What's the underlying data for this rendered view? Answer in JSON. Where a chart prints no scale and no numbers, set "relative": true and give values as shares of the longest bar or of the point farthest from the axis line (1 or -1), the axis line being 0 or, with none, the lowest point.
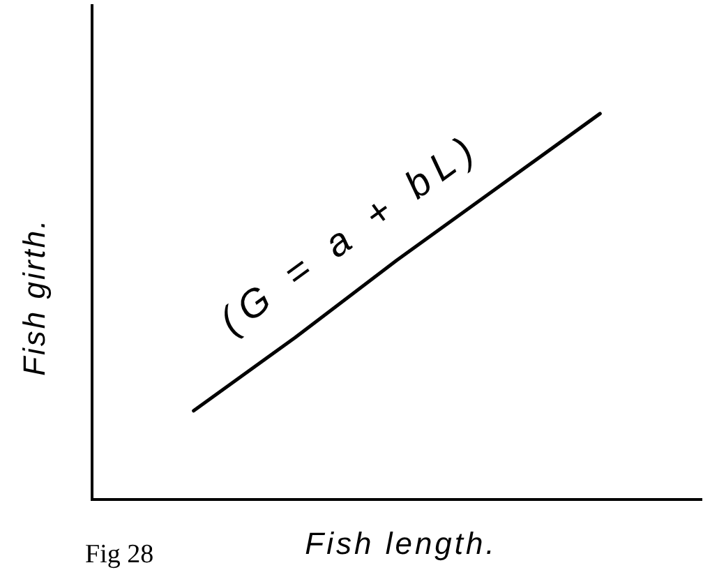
{
  "chart_data": {
    "type": "line",
    "categories": [
      null,
      null,
      null,
      null,
      null,
      null,
      null
    ],
    "values": [
      null,
      0.23,
      0.42,
      0.62,
      0.81,
      1,
      null
    ],
    "color": "#000000",
    "relative": true,
    "xlabel": "Fish length.",
    "ylabel": "Fish girth.",
    "annotations": [
      "(G = a + bL)",
      "Fig 28"
    ],
    "tick_labels": false,
    "marker": "none"
  }
}
